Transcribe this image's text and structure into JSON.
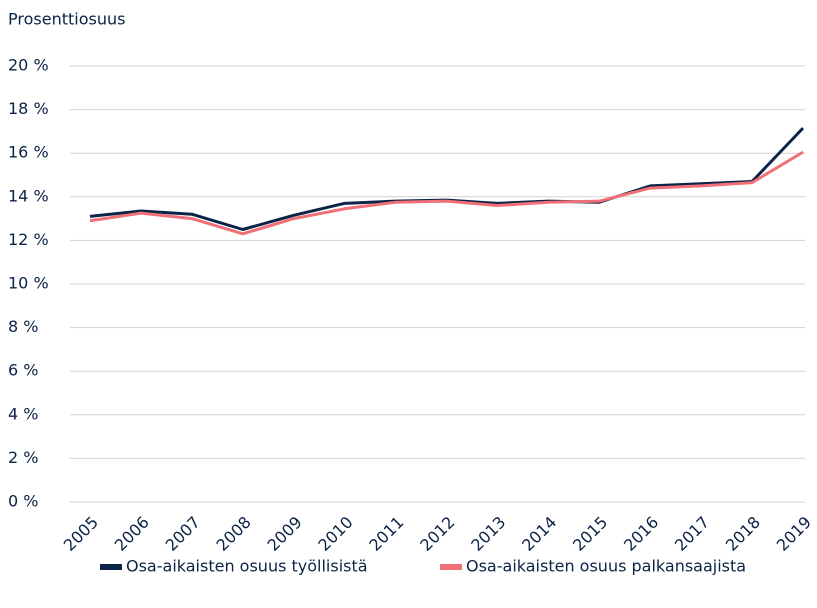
{
  "chart_data": {
    "type": "line",
    "y_label": "Prosenttiosuus",
    "categories": [
      "2005",
      "2006",
      "2007",
      "2008",
      "2009",
      "2010",
      "2011",
      "2012",
      "2013",
      "2014",
      "2015",
      "2016",
      "2017",
      "2018",
      "2019"
    ],
    "series": [
      {
        "name": "Osa-aikaisten osuus työllisistä",
        "color": "#0b2346",
        "values": [
          13.1,
          13.35,
          13.2,
          12.5,
          13.15,
          13.7,
          13.8,
          13.85,
          13.7,
          13.8,
          13.75,
          14.5,
          14.6,
          14.7,
          17.15
        ]
      },
      {
        "name": "Osa-aikaisten osuus palkansaajista",
        "color": "#f07078",
        "values": [
          12.9,
          13.25,
          13.0,
          12.3,
          13.0,
          13.45,
          13.75,
          13.8,
          13.6,
          13.75,
          13.8,
          14.4,
          14.5,
          14.65,
          16.05
        ]
      }
    ],
    "ylim": [
      0,
      20
    ],
    "yticks": [
      {
        "value": 0,
        "label": "0 %"
      },
      {
        "value": 2,
        "label": "2 %"
      },
      {
        "value": 4,
        "label": "4 %"
      },
      {
        "value": 6,
        "label": "6 %"
      },
      {
        "value": 8,
        "label": "8 %"
      },
      {
        "value": 10,
        "label": "10 %"
      },
      {
        "value": 12,
        "label": "12 %"
      },
      {
        "value": 14,
        "label": "14 %"
      },
      {
        "value": 16,
        "label": "16 %"
      },
      {
        "value": 18,
        "label": "18 %"
      },
      {
        "value": 20,
        "label": "20 %"
      }
    ],
    "grid": true,
    "legend": "bottom"
  }
}
